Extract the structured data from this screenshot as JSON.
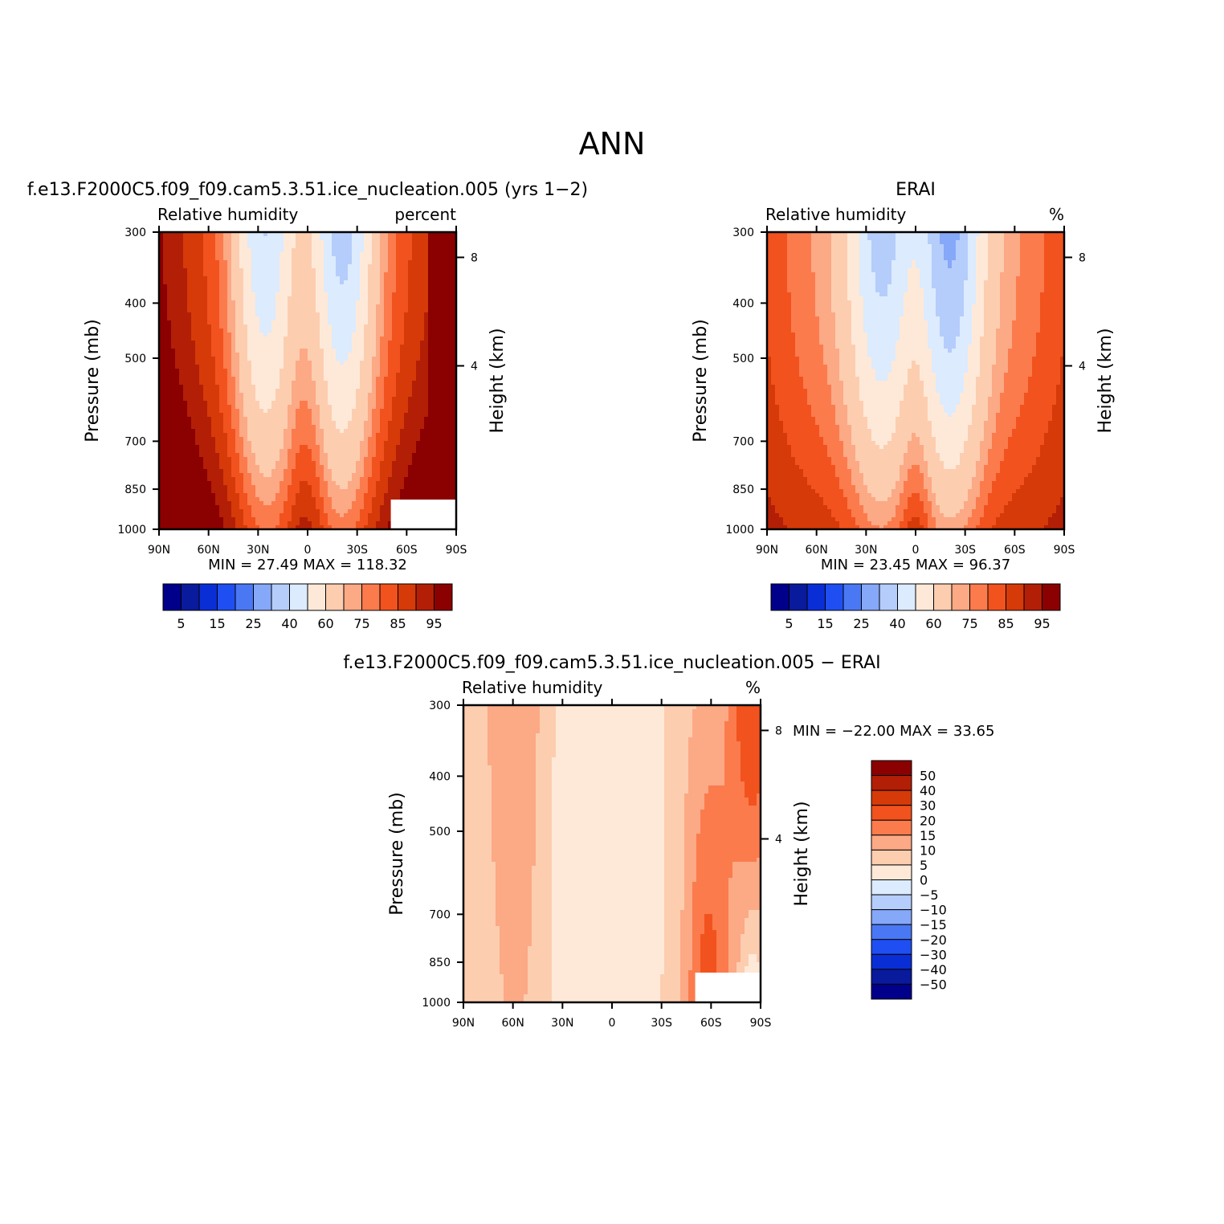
{
  "figure": {
    "main_title": "ANN"
  },
  "colors": {
    "palette_blue_red": [
      "#00008b",
      "#0a1a9c",
      "#0a2ed6",
      "#1f4ff2",
      "#4a78f5",
      "#86a8f8",
      "#b5cdfb",
      "#dcebfe",
      "#fee9d8",
      "#fdcdb0",
      "#fca985",
      "#fb7b4d",
      "#f2521e",
      "#d63a09",
      "#b21f06",
      "#8b0000"
    ]
  },
  "chart_data": [
    {
      "type": "heatmap",
      "panel": "model",
      "title": "f.e13.F2000C5.f09_f09.cam5.3.51.ice_nucleation.005 (yrs 1−2)",
      "left_subtitle": "Relative humidity",
      "right_subtitle": "percent",
      "xlabel": "",
      "ylabel": "Pressure (mb)",
      "y2label": "Height (km)",
      "x_ticks": [
        "90N",
        "60N",
        "30N",
        "0",
        "30S",
        "60S",
        "90S"
      ],
      "y_ticks": [
        "300",
        "400",
        "500",
        "700",
        "850",
        "1000"
      ],
      "y2_ticks": [
        "8",
        "4"
      ],
      "ylim": [
        1000,
        300
      ],
      "stats_text": "MIN =   27.49   MAX =  118.32",
      "min": 27.49,
      "max": 118.32,
      "colorbar_labels": [
        "5",
        "15",
        "25",
        "40",
        "60",
        "75",
        "85",
        "95"
      ]
    },
    {
      "type": "heatmap",
      "panel": "obs",
      "title": "ERAI",
      "left_subtitle": "Relative humidity",
      "right_subtitle": "%",
      "xlabel": "",
      "ylabel": "Pressure (mb)",
      "y2label": "Height (km)",
      "x_ticks": [
        "90N",
        "60N",
        "30N",
        "0",
        "30S",
        "60S",
        "90S"
      ],
      "y_ticks": [
        "300",
        "400",
        "500",
        "700",
        "850",
        "1000"
      ],
      "y2_ticks": [
        "8",
        "4"
      ],
      "ylim": [
        1000,
        300
      ],
      "stats_text": "MIN =   23.45   MAX =   96.37",
      "min": 23.45,
      "max": 96.37,
      "colorbar_labels": [
        "5",
        "15",
        "25",
        "40",
        "60",
        "75",
        "85",
        "95"
      ]
    },
    {
      "type": "heatmap",
      "panel": "diff",
      "title": "f.e13.F2000C5.f09_f09.cam5.3.51.ice_nucleation.005 − ERAI",
      "left_subtitle": "Relative humidity",
      "right_subtitle": "%",
      "xlabel": "",
      "ylabel": "Pressure (mb)",
      "y2label": "Height (km)",
      "x_ticks": [
        "90N",
        "60N",
        "30N",
        "0",
        "30S",
        "60S",
        "90S"
      ],
      "y_ticks": [
        "300",
        "400",
        "500",
        "700",
        "850",
        "1000"
      ],
      "y2_ticks": [
        "8",
        "4"
      ],
      "ylim": [
        1000,
        300
      ],
      "stats_text": "MIN = −22.00   MAX =   33.65",
      "min": -22.0,
      "max": 33.65,
      "colorbar_labels": [
        "50",
        "40",
        "30",
        "20",
        "15",
        "10",
        "5",
        "0",
        "−5",
        "−10",
        "−15",
        "−20",
        "−30",
        "−40",
        "−50"
      ]
    }
  ]
}
